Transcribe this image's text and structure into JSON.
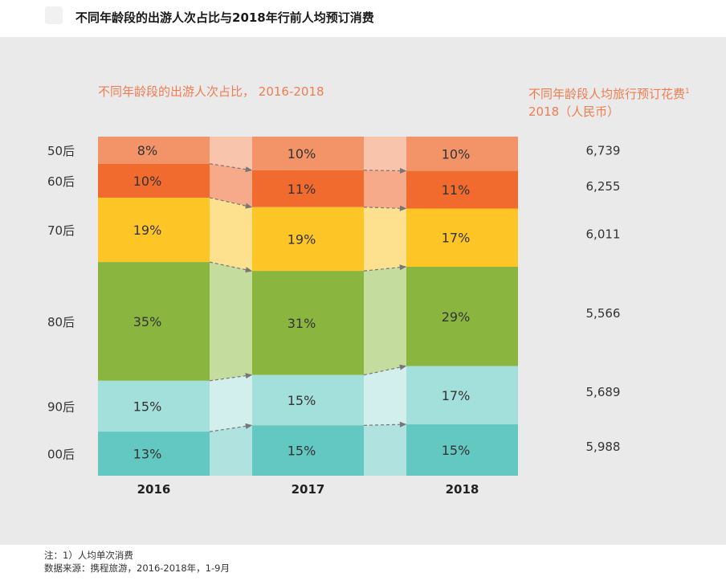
{
  "page": {
    "title": "不同年龄段的出游人次占比与2018年行前人均预订消费"
  },
  "chart_data": {
    "type": "bar",
    "stacked": true,
    "normalized_percent": true,
    "title": "不同年龄段的出游人次占比， 2016-2018",
    "right_title_line1": "不同年龄段人均旅行预订花费",
    "right_title_sup": "1",
    "right_title_line2": "2018（人民币）",
    "categories": [
      "2016",
      "2017",
      "2018"
    ],
    "series": [
      {
        "name": "50后",
        "color": "#f29468",
        "values": [
          8,
          10,
          10
        ],
        "labels": [
          "8%",
          "10%",
          "10%"
        ]
      },
      {
        "name": "60后",
        "color": "#f16b2f",
        "values": [
          10,
          11,
          11
        ],
        "labels": [
          "10%",
          "11%",
          "11%"
        ]
      },
      {
        "name": "70后",
        "color": "#fdc526",
        "values": [
          19,
          19,
          17
        ],
        "labels": [
          "19%",
          "19%",
          "17%"
        ]
      },
      {
        "name": "80后",
        "color": "#8ab640",
        "values": [
          35,
          31,
          29
        ],
        "labels": [
          "35%",
          "31%",
          "29%"
        ]
      },
      {
        "name": "90后",
        "color": "#a3dfdb",
        "values": [
          15,
          15,
          17
        ],
        "labels": [
          "15%",
          "15%",
          "17%"
        ]
      },
      {
        "name": "00后",
        "color": "#63c8c2",
        "values": [
          13,
          15,
          15
        ],
        "labels": [
          "13%",
          "15%",
          "15%"
        ]
      }
    ],
    "spend_2018": [
      "6,739",
      "6,255",
      "6,011",
      "5,566",
      "5,689",
      "5,988"
    ],
    "connector_colors": [
      "#f9c4ac",
      "#f6aa8a",
      "#fde18f",
      "#c4dc9d",
      "#d3efed",
      "#b0e3df"
    ]
  },
  "footer": {
    "note": "注：1）人均单次消费",
    "source": "数据来源：携程旅游，2016-2018年，1-9月"
  }
}
